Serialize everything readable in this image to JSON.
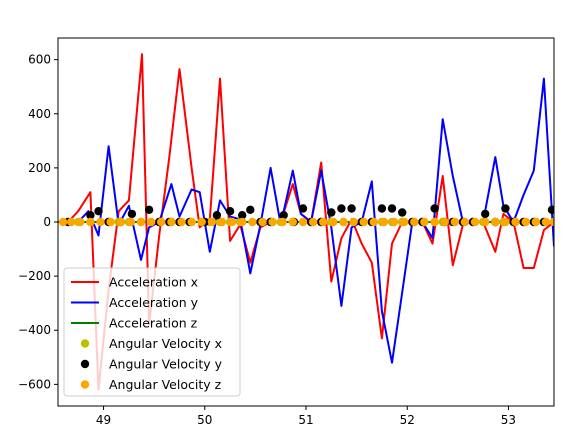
{
  "chart_data": {
    "type": "line",
    "xlim": [
      48.55,
      53.45
    ],
    "ylim": [
      -680,
      680
    ],
    "x_ticks": [
      49,
      50,
      51,
      52,
      53
    ],
    "x_tick_labels": [
      "49",
      "50",
      "51",
      "52",
      "53"
    ],
    "y_ticks": [
      -600,
      -400,
      -200,
      0,
      200,
      400,
      600
    ],
    "y_tick_labels": [
      "−600",
      "−400",
      "−200",
      "0",
      "200",
      "400",
      "600"
    ],
    "grid": false,
    "legend_position": "lower-left",
    "series": [
      {
        "name": "Acceleration x",
        "style": "line",
        "color": "#ff0000",
        "x": [
          48.65,
          48.75,
          48.87,
          48.95,
          49.05,
          49.15,
          49.25,
          49.38,
          49.45,
          49.55,
          49.65,
          49.75,
          49.87,
          49.95,
          50.05,
          50.15,
          50.25,
          50.35,
          50.45,
          50.55,
          50.65,
          50.75,
          50.87,
          50.95,
          51.05,
          51.15,
          51.25,
          51.35,
          51.45,
          51.55,
          51.65,
          51.75,
          51.85,
          51.95,
          52.05,
          52.15,
          52.25,
          52.35,
          52.45,
          52.55,
          52.65,
          52.75,
          52.87,
          52.95,
          53.05,
          53.15,
          53.25,
          53.35,
          53.45
        ],
        "y": [
          0,
          40,
          110,
          -620,
          -250,
          40,
          80,
          620,
          -380,
          -50,
          240,
          565,
          200,
          -20,
          10,
          530,
          -70,
          -10,
          -150,
          -20,
          0,
          0,
          140,
          30,
          0,
          220,
          -220,
          -60,
          10,
          -80,
          -150,
          -430,
          -80,
          0,
          0,
          0,
          -80,
          170,
          -160,
          -10,
          0,
          0,
          -110,
          30,
          0,
          -170,
          -170,
          -30,
          0
        ]
      },
      {
        "name": "Acceleration y",
        "style": "line",
        "color": "#0000ff",
        "x": [
          48.65,
          48.75,
          48.85,
          48.95,
          49.05,
          49.15,
          49.25,
          49.37,
          49.45,
          49.55,
          49.67,
          49.75,
          49.87,
          49.95,
          50.05,
          50.15,
          50.25,
          50.35,
          50.45,
          50.55,
          50.65,
          50.75,
          50.87,
          50.95,
          51.05,
          51.15,
          51.25,
          51.35,
          51.45,
          51.55,
          51.65,
          51.75,
          51.85,
          51.95,
          52.05,
          52.15,
          52.25,
          52.35,
          52.45,
          52.55,
          52.65,
          52.75,
          52.87,
          52.95,
          53.05,
          53.15,
          53.25,
          53.35,
          53.45
        ],
        "y": [
          0,
          0,
          40,
          -50,
          280,
          -10,
          60,
          -140,
          -20,
          0,
          140,
          20,
          120,
          110,
          -110,
          80,
          20,
          10,
          -190,
          -10,
          200,
          -10,
          190,
          30,
          0,
          190,
          -20,
          -310,
          -20,
          0,
          150,
          -330,
          -520,
          -260,
          0,
          0,
          -60,
          380,
          170,
          0,
          0,
          0,
          240,
          60,
          0,
          100,
          190,
          530,
          -90
        ]
      },
      {
        "name": "Acceleration z",
        "style": "line",
        "color": "#008000",
        "x": [
          48.55,
          53.45
        ],
        "y": [
          0,
          0
        ]
      },
      {
        "name": "Angular Velocity x",
        "style": "marker",
        "color": "#bfbf00",
        "x": [
          48.65,
          48.75,
          48.87,
          49.05,
          49.15,
          49.25,
          49.37,
          49.55,
          49.67,
          49.75,
          49.87,
          50.05,
          50.15,
          50.25,
          50.35,
          50.55,
          50.65,
          50.75,
          50.87,
          51.05,
          51.15,
          51.25,
          51.37,
          51.55,
          51.65,
          51.75,
          51.85,
          51.95,
          52.07,
          52.15,
          52.27,
          52.35,
          52.45,
          52.55,
          52.65,
          52.75,
          52.87,
          52.95,
          53.05,
          53.15,
          53.27,
          53.35,
          53.45
        ],
        "y": [
          0,
          0,
          0,
          0,
          0,
          0,
          0,
          0,
          0,
          0,
          0,
          0,
          0,
          0,
          0,
          0,
          0,
          0,
          0,
          0,
          0,
          0,
          0,
          0,
          0,
          0,
          0,
          0,
          0,
          0,
          0,
          0,
          0,
          0,
          0,
          0,
          0,
          0,
          0,
          0,
          0,
          0,
          0
        ]
      },
      {
        "name": "Angular Velocity y",
        "style": "marker",
        "color": "#000000",
        "x": [
          48.65,
          48.87,
          48.95,
          49.05,
          49.17,
          49.28,
          49.45,
          49.55,
          49.65,
          49.75,
          49.85,
          50.0,
          50.12,
          50.25,
          50.37,
          50.45,
          50.55,
          50.65,
          50.78,
          50.88,
          50.97,
          51.05,
          51.15,
          51.25,
          51.35,
          51.45,
          51.55,
          51.65,
          51.75,
          51.85,
          51.95,
          52.05,
          52.15,
          52.27,
          52.37,
          52.45,
          52.55,
          52.65,
          52.77,
          52.87,
          52.97,
          53.05,
          53.15,
          53.25,
          53.35,
          53.43
        ],
        "y": [
          0,
          25,
          40,
          0,
          0,
          30,
          45,
          0,
          0,
          0,
          0,
          0,
          25,
          40,
          25,
          45,
          0,
          0,
          25,
          0,
          50,
          0,
          0,
          35,
          50,
          50,
          0,
          0,
          50,
          50,
          35,
          0,
          0,
          50,
          0,
          0,
          0,
          0,
          30,
          0,
          50,
          0,
          0,
          0,
          0,
          45
        ]
      },
      {
        "name": "Angular Velocity z",
        "style": "marker",
        "color": "#ffa500",
        "x": [
          48.6,
          48.68,
          48.77,
          48.87,
          48.97,
          49.07,
          49.17,
          49.27,
          49.37,
          49.47,
          49.57,
          49.67,
          49.77,
          49.87,
          49.97,
          50.07,
          50.17,
          50.27,
          50.37,
          50.47,
          50.57,
          50.67,
          50.77,
          50.87,
          50.97,
          51.07,
          51.17,
          51.27,
          51.37,
          51.47,
          51.57,
          51.67,
          51.77,
          51.87,
          51.97,
          52.07,
          52.17,
          52.27,
          52.37,
          52.47,
          52.57,
          52.67,
          52.77,
          52.87,
          52.97,
          53.07,
          53.17,
          53.27,
          53.37,
          53.45
        ],
        "y": [
          0,
          0,
          0,
          0,
          0,
          0,
          0,
          0,
          0,
          0,
          0,
          0,
          0,
          0,
          0,
          0,
          0,
          0,
          0,
          0,
          0,
          0,
          0,
          0,
          0,
          0,
          0,
          0,
          0,
          0,
          0,
          0,
          0,
          0,
          0,
          0,
          0,
          0,
          0,
          0,
          0,
          0,
          0,
          0,
          0,
          0,
          0,
          0,
          0,
          0
        ]
      }
    ]
  }
}
